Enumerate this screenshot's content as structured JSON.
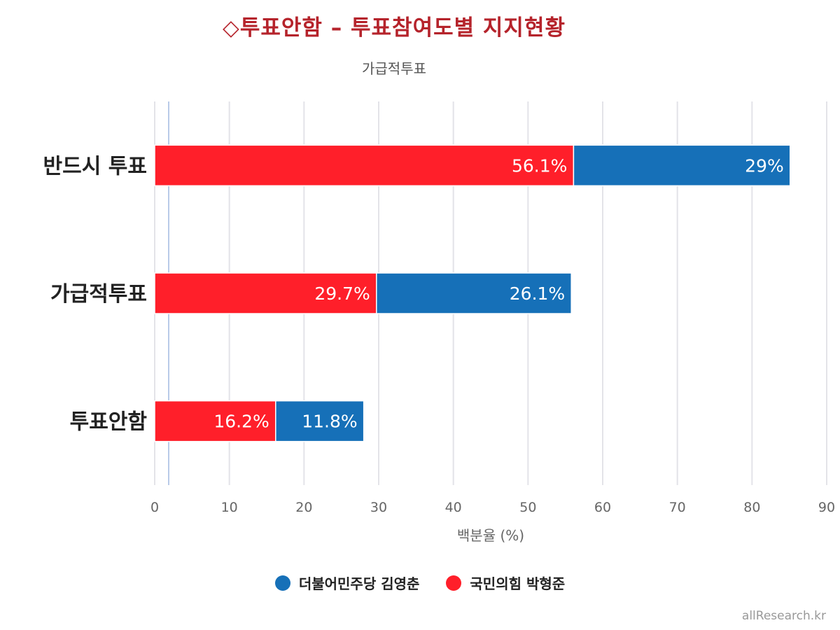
{
  "chart_data": {
    "type": "bar",
    "orientation": "horizontal",
    "stacked": true,
    "title": "◇투표안함 – 투표참여도별 지지현황",
    "subtitle": "가급적투표",
    "xlabel": "백분율 (%)",
    "xlim": [
      0,
      90
    ],
    "xticks": [
      0,
      10,
      20,
      30,
      40,
      50,
      60,
      70,
      80,
      90
    ],
    "grid": true,
    "legend_position": "bottom",
    "categories": [
      "반드시 투표",
      "가급적투표",
      "투표안함"
    ],
    "series": [
      {
        "name": "국민의힘 박형준",
        "color": "#ff1f2a",
        "values": [
          56.1,
          29.7,
          16.2
        ],
        "labels": [
          "56.1%",
          "29.7%",
          "16.2%"
        ]
      },
      {
        "name": "더불어민주당 김영춘",
        "color": "#1670b8",
        "values": [
          29,
          26.1,
          11.8
        ],
        "labels": [
          "29%",
          "26.1%",
          "11.8%"
        ]
      }
    ],
    "legend_order": [
      "더불어민주당 김영춘",
      "국민의힘 박형준"
    ]
  },
  "credit": "allResearch.kr"
}
